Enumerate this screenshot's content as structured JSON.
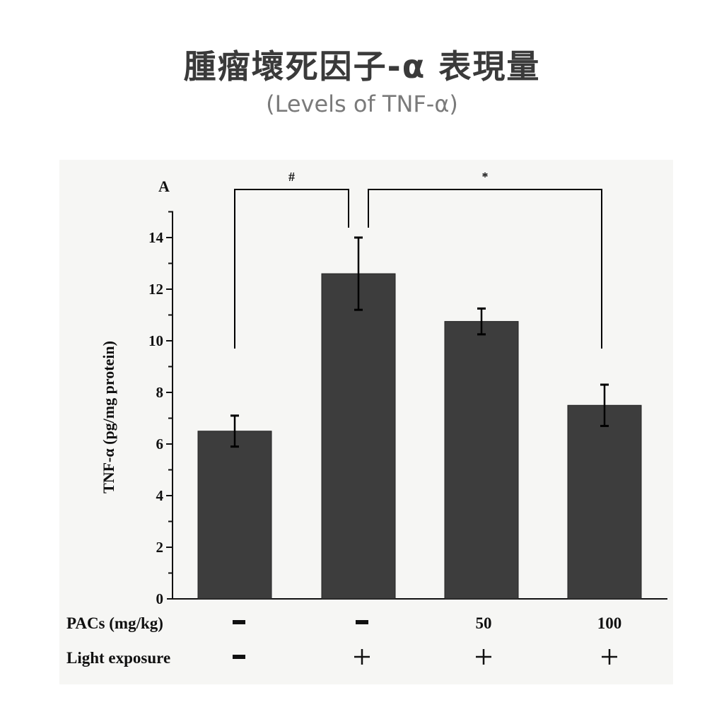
{
  "header": {
    "title": "腫瘤壞死因子-α 表現量",
    "subtitle": "(Levels of TNF-α)"
  },
  "panel_label": "A",
  "significance": [
    {
      "label": "#",
      "from": 0,
      "to": 1
    },
    {
      "label": "*",
      "from": 1,
      "to": 3
    }
  ],
  "conditions": {
    "pacs_label": "PACs (mg/kg)",
    "light_label": "Light exposure",
    "pacs": [
      "-",
      "-",
      "50",
      "100"
    ],
    "light": [
      "-",
      "+",
      "+",
      "+"
    ]
  },
  "colors": {
    "bar": "#3d3d3d",
    "axis": "#111111",
    "background": "#f6f6f4"
  },
  "chart_data": {
    "type": "bar",
    "title": "腫瘤壞死因子-α 表現量 (Levels of TNF-α)",
    "xlabel": "",
    "ylabel": "TNF-α (pg/mg protein)",
    "categories": [
      "PACs -, Light -",
      "PACs -, Light +",
      "PACs 50, Light +",
      "PACs 100, Light +"
    ],
    "values": [
      6.5,
      12.6,
      10.75,
      7.5
    ],
    "error": [
      0.6,
      1.4,
      0.5,
      0.8
    ],
    "ylim": [
      0,
      15
    ],
    "yticks": [
      0,
      2,
      4,
      6,
      8,
      10,
      12,
      14
    ],
    "grid": false,
    "legend": null,
    "annotations": [
      "#",
      "*"
    ]
  }
}
